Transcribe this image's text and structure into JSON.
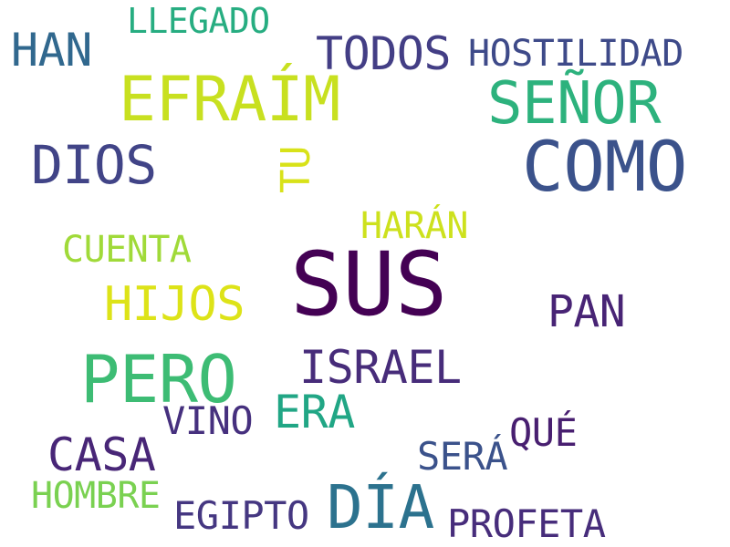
{
  "words": {
    "sus": {
      "text": "SUS",
      "color": "#440154"
    },
    "como": {
      "text": "COMO",
      "color": "#3b528b"
    },
    "efraim": {
      "text": "EFRAÍM",
      "color": "#c8e020"
    },
    "senor": {
      "text": "SEÑOR",
      "color": "#2db27d"
    },
    "pero": {
      "text": "PERO",
      "color": "#3dbc74"
    },
    "dia": {
      "text": "DÍA",
      "color": "#2c728e"
    },
    "dios": {
      "text": "DIOS",
      "color": "#414487"
    },
    "todos": {
      "text": "TODOS",
      "color": "#433e85"
    },
    "han": {
      "text": "HAN",
      "color": "#31688e"
    },
    "hostilidad": {
      "text": "HOSTILIDAD",
      "color": "#3e4a89"
    },
    "llegado": {
      "text": "LLEGADO",
      "color": "#27ad81"
    },
    "tu": {
      "text": "TU",
      "color": "#d8e219"
    },
    "haran": {
      "text": "HARÁN",
      "color": "#cde11d"
    },
    "cuenta": {
      "text": "CUENTA",
      "color": "#a0da39"
    },
    "hijos": {
      "text": "HIJOS",
      "color": "#dde318"
    },
    "pan": {
      "text": "PAN",
      "color": "#482475"
    },
    "israel": {
      "text": "ISRAEL",
      "color": "#472c7a"
    },
    "era": {
      "text": "ERA",
      "color": "#21a685"
    },
    "vino": {
      "text": "VINO",
      "color": "#46307e"
    },
    "casa": {
      "text": "CASA",
      "color": "#482677"
    },
    "que": {
      "text": "QUÉ",
      "color": "#481f70"
    },
    "sera": {
      "text": "SERÁ",
      "color": "#3b528b"
    },
    "hombre": {
      "text": "HOMBRE",
      "color": "#7ad151"
    },
    "egipto": {
      "text": "EGIPTO",
      "color": "#453781"
    },
    "profeta": {
      "text": "PROFETA",
      "color": "#472d7b"
    }
  }
}
